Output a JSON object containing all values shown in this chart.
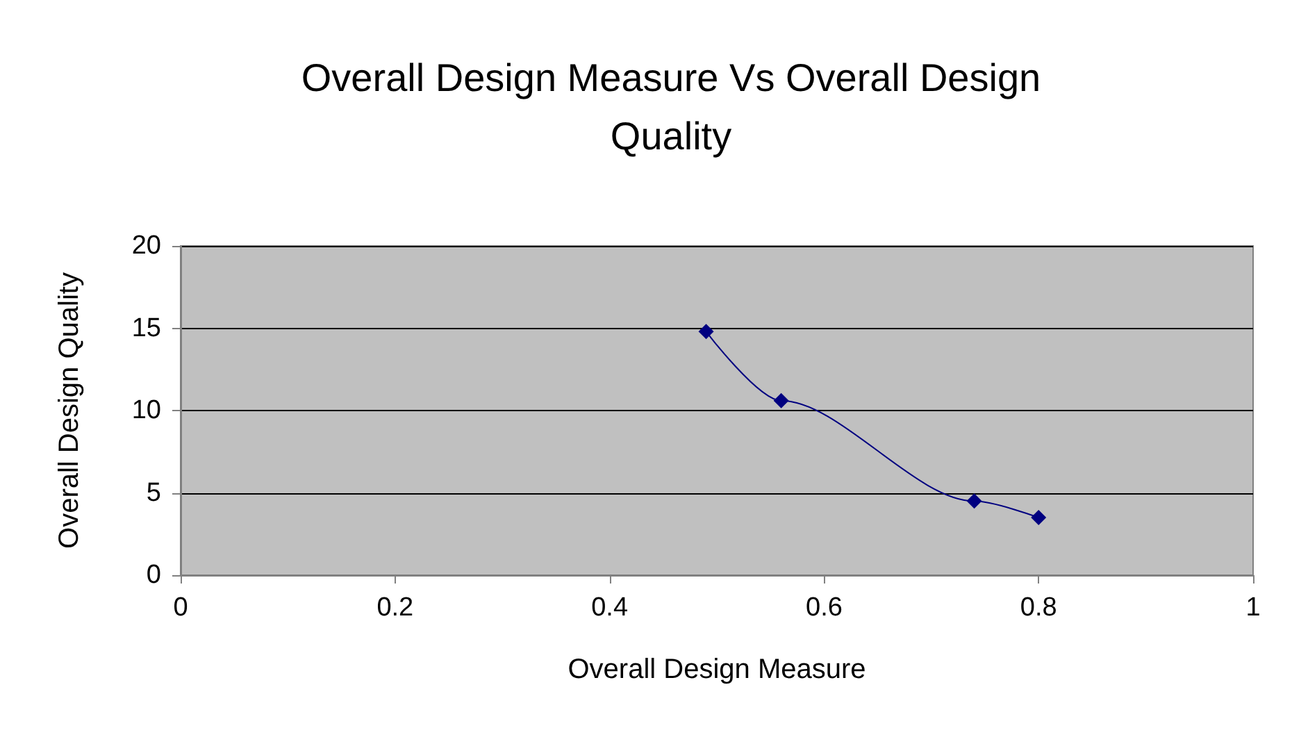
{
  "chart_data": {
    "type": "line",
    "title": "Overall Design Measure Vs Overall Design\nQuality",
    "xlabel": "Overall Design Measure",
    "ylabel": "Overall Design Quality",
    "x": [
      0.49,
      0.56,
      0.74,
      0.8
    ],
    "series": [
      {
        "color": "#000080",
        "values": [
          14.8,
          10.6,
          4.5,
          3.5
        ]
      }
    ],
    "xlim": [
      0,
      1
    ],
    "xticks": [
      0,
      0.2,
      0.4,
      0.6,
      0.8,
      1
    ],
    "ylim": [
      0,
      20
    ],
    "yticks": [
      0,
      5,
      10,
      15,
      20
    ],
    "grid": "y",
    "marker": "diamond",
    "line_style": "solid"
  }
}
